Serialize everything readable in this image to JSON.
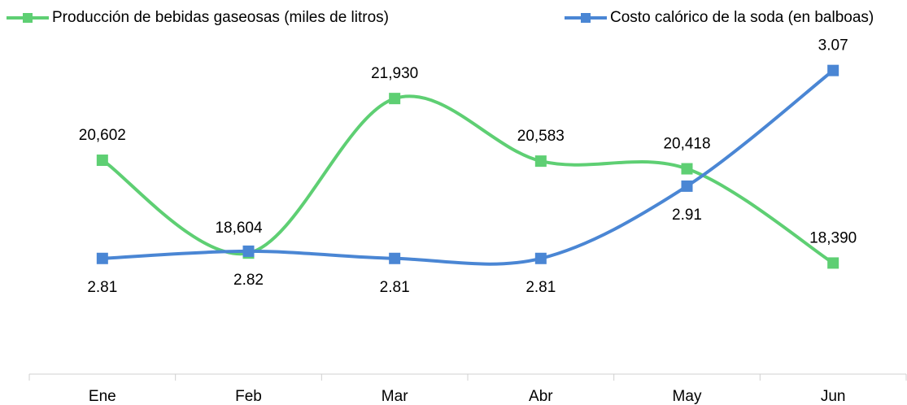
{
  "chart_data": {
    "type": "line",
    "categories": [
      "Ene",
      "Feb",
      "Mar",
      "Abr",
      "May",
      "Jun"
    ],
    "series": [
      {
        "name": "Producción de bebidas gaseosas (miles de litros)",
        "color": "#5ecf73",
        "values": [
          20602,
          18604,
          21930,
          20583,
          20418,
          18390
        ],
        "value_labels": [
          "20,602",
          "18,604",
          "21,930",
          "20,583",
          "20,418",
          "18,390"
        ]
      },
      {
        "name": "Costo calórico de la soda (en balboas)",
        "color": "#4a86d4",
        "axis": "y2",
        "values": [
          2.81,
          2.82,
          2.81,
          2.81,
          2.91,
          3.07
        ]
      }
    ],
    "ylim": [
      16000,
      23000
    ],
    "y2lim": [
      2.65,
      3.1
    ]
  }
}
